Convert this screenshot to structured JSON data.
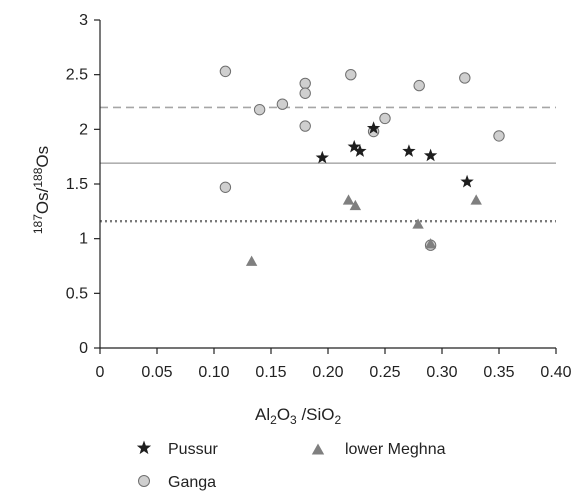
{
  "chart_data": {
    "type": "scatter",
    "title": "",
    "xlabel": {
      "base1": "Al",
      "sub1": "2",
      "base2": "O",
      "sub2": "3",
      "rest": " /SiO",
      "sub3": "2"
    },
    "ylabel": {
      "sup1": "187",
      "base1": "Os/",
      "sup2": "188",
      "base2": "Os"
    },
    "xlim": [
      0,
      0.4
    ],
    "ylim": [
      0,
      3
    ],
    "xticks": [
      "0",
      "0.05",
      "0.10",
      "0.15",
      "0.20",
      "0.25",
      "0.30",
      "0.35",
      "0.40"
    ],
    "xtick_values": [
      0,
      0.05,
      0.1,
      0.15,
      0.2,
      0.25,
      0.3,
      0.35,
      0.4
    ],
    "yticks": [
      "0",
      "0.5",
      "1",
      "1.5",
      "2",
      "2.5",
      "3"
    ],
    "ytick_values": [
      0,
      0.5,
      1,
      1.5,
      2,
      2.5,
      3
    ],
    "grid": false,
    "legend_position": "bottom",
    "reference_lines": [
      {
        "y": 2.2,
        "style": "dashed",
        "color": "#a6a6a6"
      },
      {
        "y": 1.69,
        "style": "solid",
        "color": "#b0b0b0"
      },
      {
        "y": 1.16,
        "style": "dotted",
        "color": "#7a7a7a"
      }
    ],
    "series": [
      {
        "name": "Pussur",
        "marker": "star",
        "color": "#1e1e1e",
        "points": [
          {
            "x": 0.195,
            "y": 1.74
          },
          {
            "x": 0.223,
            "y": 1.84
          },
          {
            "x": 0.228,
            "y": 1.8
          },
          {
            "x": 0.24,
            "y": 2.01
          },
          {
            "x": 0.271,
            "y": 1.8
          },
          {
            "x": 0.29,
            "y": 1.76
          },
          {
            "x": 0.322,
            "y": 1.52
          }
        ]
      },
      {
        "name": "lower Meghna",
        "marker": "triangle",
        "color": "#7f7f7f",
        "points": [
          {
            "x": 0.133,
            "y": 0.79
          },
          {
            "x": 0.218,
            "y": 1.35
          },
          {
            "x": 0.224,
            "y": 1.3
          },
          {
            "x": 0.279,
            "y": 1.13
          },
          {
            "x": 0.29,
            "y": 0.95
          },
          {
            "x": 0.33,
            "y": 1.35
          }
        ]
      },
      {
        "name": "Ganga",
        "marker": "circle",
        "color": "#cfcfcf",
        "stroke": "#6f6f6f",
        "points": [
          {
            "x": 0.11,
            "y": 2.53
          },
          {
            "x": 0.11,
            "y": 1.47
          },
          {
            "x": 0.14,
            "y": 2.18
          },
          {
            "x": 0.16,
            "y": 2.23
          },
          {
            "x": 0.18,
            "y": 2.42
          },
          {
            "x": 0.18,
            "y": 2.33
          },
          {
            "x": 0.18,
            "y": 2.03
          },
          {
            "x": 0.22,
            "y": 2.5
          },
          {
            "x": 0.24,
            "y": 1.98
          },
          {
            "x": 0.25,
            "y": 2.1
          },
          {
            "x": 0.28,
            "y": 2.4
          },
          {
            "x": 0.29,
            "y": 0.94
          },
          {
            "x": 0.32,
            "y": 2.47
          },
          {
            "x": 0.35,
            "y": 1.94
          }
        ]
      }
    ]
  }
}
